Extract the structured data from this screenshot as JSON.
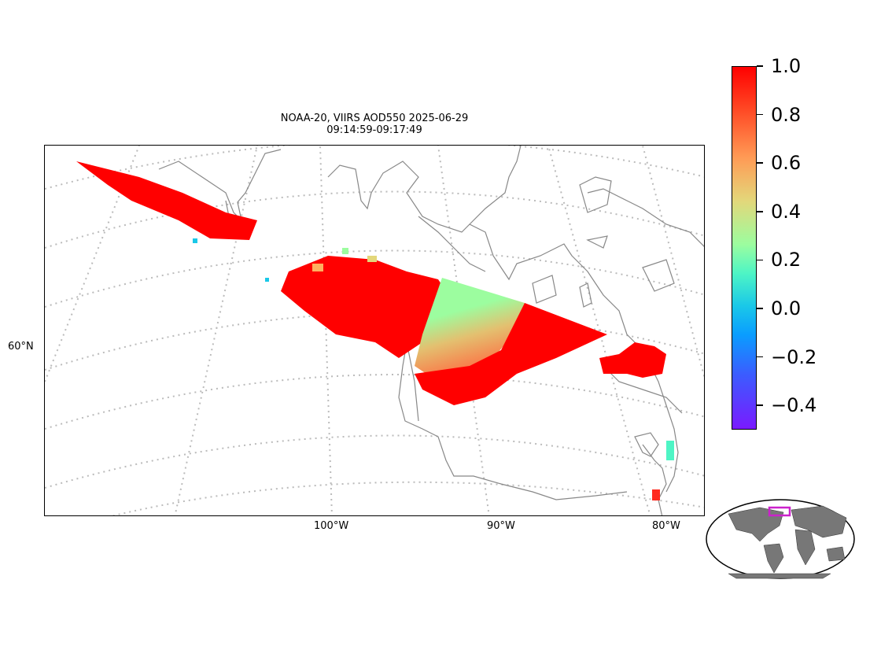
{
  "title": {
    "line1": "NOAA-20, VIIRS AOD550 2025-06-29",
    "line2": "09:14:59-09:17:49"
  },
  "axes": {
    "lat_label": "60°N",
    "lon_labels": [
      "100°W",
      "90°W",
      "80°W"
    ]
  },
  "colorbar": {
    "ticks": [
      "1.0",
      "0.8",
      "0.6",
      "0.4",
      "0.2",
      "0.0",
      "−0.2",
      "−0.4"
    ],
    "vmin": -0.5,
    "vmax": 1.0,
    "colormap": "rainbow"
  },
  "colors": {
    "coastline": "#888888",
    "graticule": "#bbbbbb",
    "high_aod": "#ff0000",
    "mid_aod": "#ff9a55",
    "low_aod": "#9cfd9f",
    "region_box": "#cc22cc",
    "land_inset": "#777777"
  },
  "chart_data": {
    "type": "heatmap",
    "variable": "AOD550",
    "satellite": "NOAA-20",
    "sensor": "VIIRS",
    "date": "2025-06-29",
    "time_range": "09:14:59-09:17:49",
    "value_range": [
      -0.5,
      1.0
    ],
    "gridlines": true,
    "inset_globe": true
  }
}
